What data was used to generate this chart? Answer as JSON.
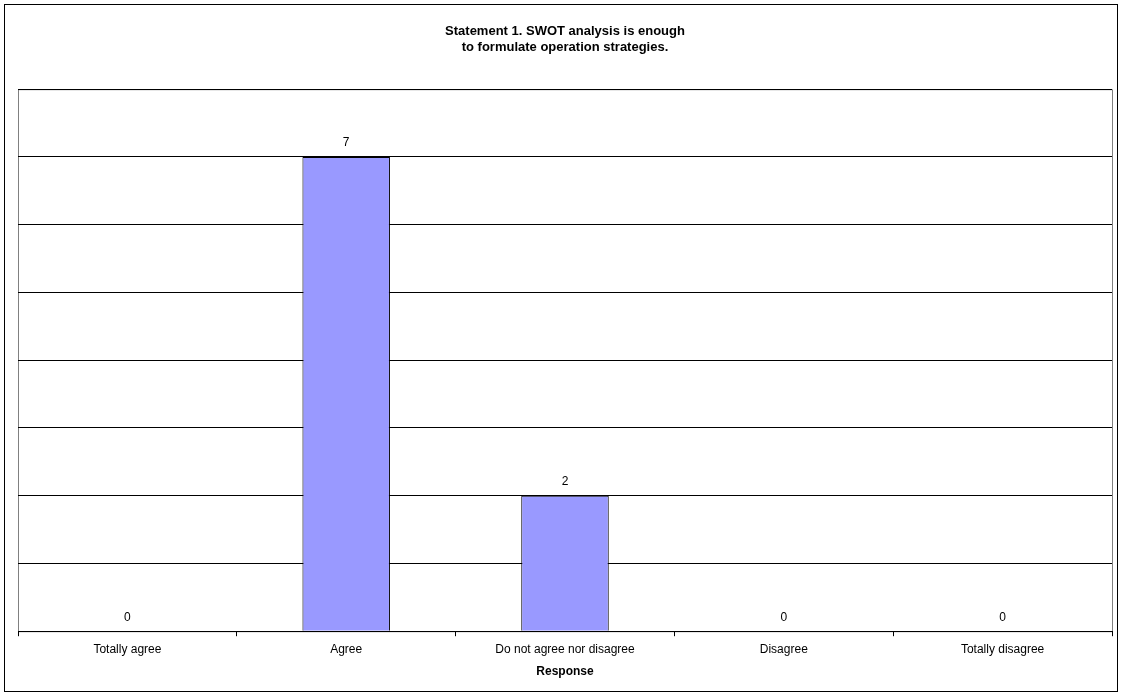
{
  "chart_data": {
    "type": "bar",
    "title": "Statement 1. SWOT analysis is enough\nto formulate operation strategies.",
    "xlabel": "Response",
    "categories": [
      "Totally agree",
      "Agree",
      "Do not agree nor disagree",
      "Disagree",
      "Totally disagree"
    ],
    "values": [
      0,
      7,
      2,
      0,
      0
    ],
    "color": "#9999ff",
    "ylim": [
      0,
      8
    ],
    "yticks": [
      {
        "value": 0,
        "label": null
      },
      {
        "value": 1,
        "label": null
      },
      {
        "value": 2,
        "label": null
      },
      {
        "value": 3,
        "label": null
      },
      {
        "value": 4,
        "label": null
      },
      {
        "value": 5,
        "label": null
      },
      {
        "value": 6,
        "label": null
      },
      {
        "value": 7,
        "label": null
      },
      {
        "value": 8,
        "label": null
      }
    ],
    "tick_labels": "x",
    "grid": "y",
    "legend": false,
    "data_labels": true
  }
}
